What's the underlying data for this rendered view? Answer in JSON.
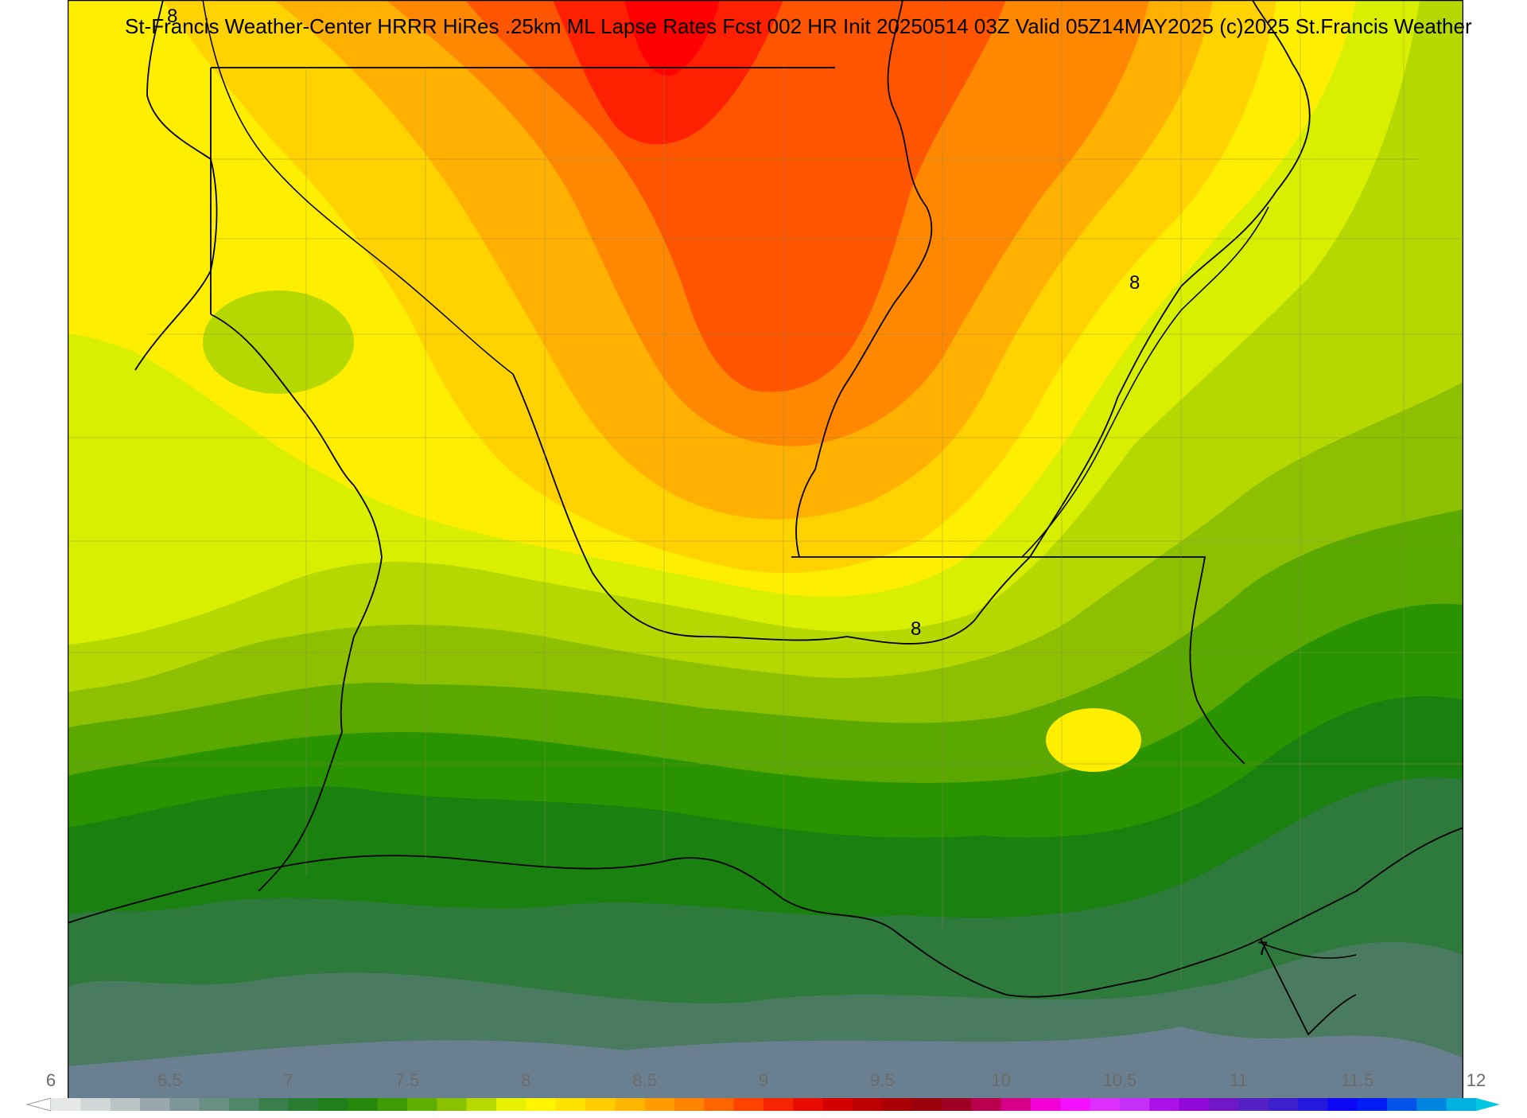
{
  "title": "St-Francis Weather-Center HRRR HiRes .25km ML Lapse Rates  Fcst 002 HR Init 20250514 03Z  Valid 05Z14MAY2025    (c)2025 St.Francis Weather",
  "contour_labels": [
    "8",
    "8",
    "8",
    "7"
  ],
  "colorbar": {
    "min": 6,
    "max": 12,
    "step": 0.125,
    "tick_labels": [
      "6",
      "6.5",
      "7",
      "7.5",
      "8",
      "8.5",
      "9",
      "9.5",
      "10",
      "10.5",
      "11",
      "11.5",
      "12"
    ],
    "tick_values": [
      6,
      6.5,
      7,
      7.5,
      8,
      8.5,
      9,
      9.5,
      10,
      10.5,
      11,
      11.5,
      12
    ]
  },
  "colors": {
    "red_max": "#ff0000",
    "orange_red": "#ff5500",
    "orange": "#ff8800",
    "orange_yellow": "#ffb000",
    "gold": "#ffd200",
    "yellow": "#ffee00",
    "yellow_green": "#d8f000",
    "lime": "#b4d800",
    "green_light": "#8cc000",
    "green_mid": "#5aa800",
    "green": "#2a9400",
    "green_dark": "#1a8010",
    "green_darker": "#2e7a3c",
    "grey_green": "#4a7a60",
    "grey_blue": "#6a8090"
  }
}
